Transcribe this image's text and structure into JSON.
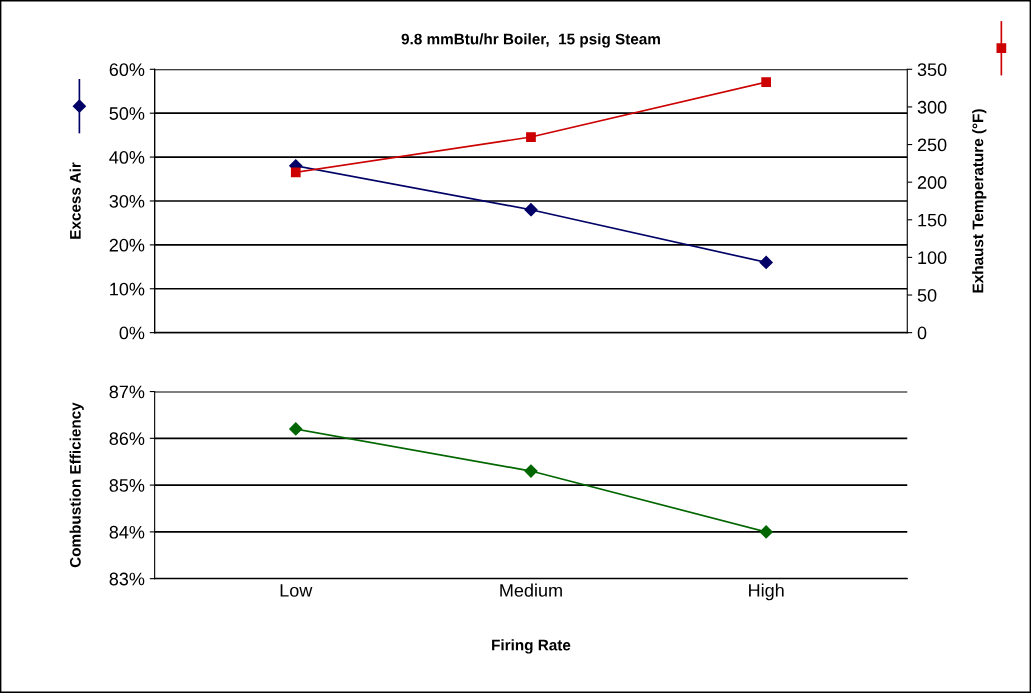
{
  "chart_data": [
    {
      "type": "line",
      "title": "9.8 mmBtu/hr Boiler,  15 psig Steam",
      "categories": [
        null,
        null,
        null
      ],
      "series": [
        {
          "color": "#000066",
          "values": [
            38,
            28,
            16
          ],
          "marker": "diamond"
        },
        {
          "color": "#cc0000",
          "values": [
            213,
            260,
            333
          ],
          "marker": "square",
          "axis": "y2"
        }
      ],
      "ylabel": "Excess Air",
      "y2label": "Exhaust Temperature (°F)",
      "ylim": [
        0,
        60
      ],
      "yticks": [
        {
          "value": 0,
          "label": "0%"
        },
        {
          "value": 10,
          "label": "10%"
        },
        {
          "value": 20,
          "label": "20%"
        },
        {
          "value": 30,
          "label": "30%"
        },
        {
          "value": 40,
          "label": "40%"
        },
        {
          "value": 50,
          "label": "50%"
        },
        {
          "value": 60,
          "label": "60%"
        }
      ],
      "y2lim": [
        0,
        350
      ],
      "y2ticks": [
        0,
        50,
        100,
        150,
        200,
        250,
        300,
        350
      ],
      "grid": "y",
      "tick_labels": "y",
      "line_style": "solid"
    },
    {
      "type": "line",
      "categories": [
        "Low",
        "Medium",
        "High"
      ],
      "series": [
        {
          "color": "#006600",
          "values": [
            86.2,
            85.3,
            84.0
          ],
          "marker": "diamond"
        }
      ],
      "ylabel": "Combustion Efficiency",
      "xlabel": "Firing Rate",
      "ylim": [
        83,
        87
      ],
      "yticks": [
        {
          "value": 83,
          "label": "83%"
        },
        {
          "value": 84,
          "label": "84%"
        },
        {
          "value": 85,
          "label": "85%"
        },
        {
          "value": 86,
          "label": "86%"
        },
        {
          "value": 87,
          "label": "87%"
        }
      ],
      "grid": "y",
      "line_style": "solid"
    }
  ]
}
